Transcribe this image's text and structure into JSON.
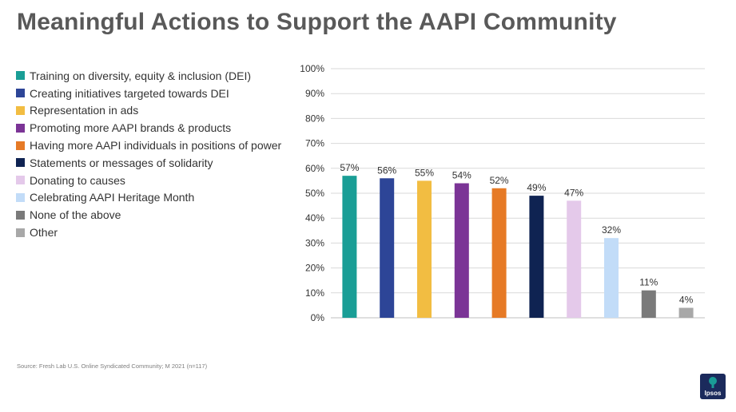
{
  "title": "Meaningful Actions to Support the AAPI Community",
  "source_note": "Source: Fresh Lab U.S. Online Syndicated Community; M 2021 (n=117)",
  "logo": {
    "text": "Ipsos",
    "color": "#1b2a5c",
    "accent": "#1a9b96"
  },
  "chart_data": {
    "type": "bar",
    "title": "",
    "xlabel": "",
    "ylabel": "",
    "ylim": [
      0,
      100
    ],
    "yticks": [
      "0%",
      "10%",
      "20%",
      "30%",
      "40%",
      "50%",
      "60%",
      "70%",
      "80%",
      "90%",
      "100%"
    ],
    "grid": true,
    "legend_position": "left",
    "categories": [
      "Training on diversity, equity & inclusion (DEI)",
      "Creating initiatives targeted towards DEI",
      "Representation in ads",
      "Promoting more AAPI brands & products",
      "Having more AAPI individuals in positions of power",
      "Statements or messages of solidarity",
      "Donating to causes",
      "Celebrating AAPI Heritage Month",
      "None of the above",
      "Other"
    ],
    "values": [
      57,
      56,
      55,
      54,
      52,
      49,
      47,
      32,
      11,
      4
    ],
    "value_labels": [
      "57%",
      "56%",
      "55%",
      "54%",
      "52%",
      "49%",
      "47%",
      "32%",
      "11%",
      "4%"
    ],
    "colors": [
      "#1a9e96",
      "#2d4597",
      "#f2bd42",
      "#7b3496",
      "#e67a26",
      "#0f2352",
      "#e4c9ea",
      "#c2dcf8",
      "#7a7a7a",
      "#a8a8a8"
    ]
  }
}
